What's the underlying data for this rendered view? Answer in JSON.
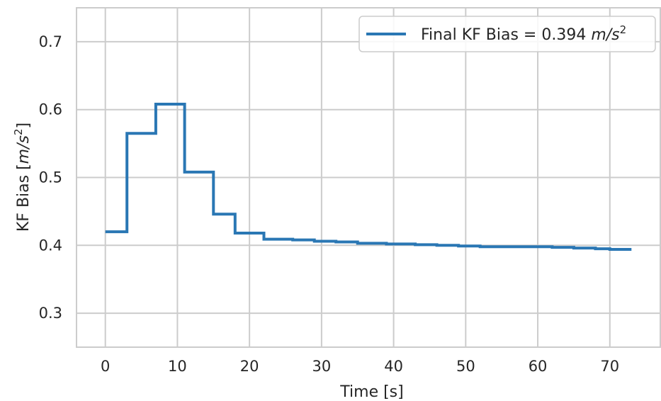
{
  "chart_data": {
    "type": "line",
    "style": "step",
    "xlabel": "Time [s]",
    "ylabel_main": "KF Bias [",
    "ylabel_unit": "m/s",
    "ylabel_exp": "2",
    "ylabel_close": "]",
    "xlim": [
      -4,
      77
    ],
    "ylim": [
      0.25,
      0.75
    ],
    "xticks": [
      0,
      10,
      20,
      30,
      40,
      50,
      60,
      70
    ],
    "xtick_labels": [
      "0",
      "10",
      "20",
      "30",
      "40",
      "50",
      "60",
      "70"
    ],
    "yticks": [
      0.3,
      0.4,
      0.5,
      0.6,
      0.7
    ],
    "ytick_labels": [
      "0.3",
      "0.4",
      "0.5",
      "0.6",
      "0.7"
    ],
    "grid": true,
    "legend_position": "top-right",
    "series": [
      {
        "name": "Final KF Bias = 0.394",
        "name_unit": "m/s",
        "name_exp": "2",
        "color": "#2a77b4",
        "x": [
          0,
          3,
          7,
          11,
          15,
          18,
          22,
          26,
          29,
          32,
          35,
          39,
          43,
          46,
          49,
          52,
          55,
          58,
          62,
          65,
          68,
          70,
          73
        ],
        "y": [
          0.42,
          0.565,
          0.608,
          0.508,
          0.446,
          0.418,
          0.409,
          0.408,
          0.406,
          0.405,
          0.403,
          0.402,
          0.401,
          0.4,
          0.399,
          0.398,
          0.398,
          0.398,
          0.397,
          0.396,
          0.395,
          0.394,
          0.394
        ]
      }
    ]
  }
}
